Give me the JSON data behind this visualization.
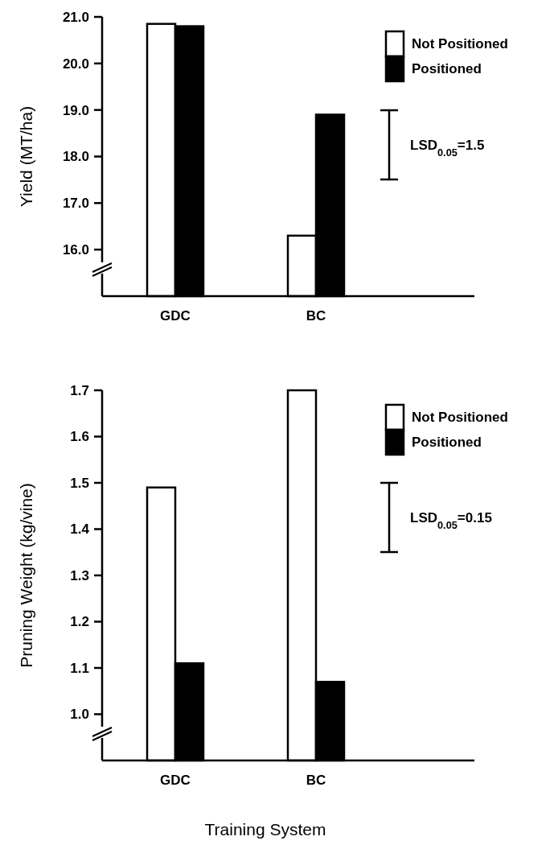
{
  "chart_data": [
    {
      "type": "bar",
      "ylabel": "Yield (MT/ha)",
      "categories": [
        "GDC",
        "BC"
      ],
      "series": [
        {
          "name": "Not Positioned",
          "color": "#ffffff",
          "values": [
            20.85,
            16.3
          ]
        },
        {
          "name": "Positioned",
          "color": "#000000",
          "values": [
            20.8,
            18.9
          ]
        }
      ],
      "ylim": [
        15.0,
        21.0
      ],
      "yticks": [
        {
          "value": 15.0,
          "label": null
        },
        {
          "value": 16.0,
          "label": "16.0"
        },
        {
          "value": 17.0,
          "label": "17.0"
        },
        {
          "value": 18.0,
          "label": "18.0"
        },
        {
          "value": 19.0,
          "label": "19.0"
        },
        {
          "value": 20.0,
          "label": "20.0"
        },
        {
          "value": 21.0,
          "label": "21.0"
        }
      ],
      "annotations": [
        "LSD$_{0.05}$=1.5"
      ],
      "legend": "top right"
    },
    {
      "type": "bar",
      "ylabel": "Pruning Weight (kg/vine)",
      "xlabel": "Training System",
      "categories": [
        "GDC",
        "BC"
      ],
      "series": [
        {
          "name": "Not Positioned",
          "color": "#ffffff",
          "values": [
            1.49,
            1.7
          ]
        },
        {
          "name": "Positioned",
          "color": "#000000",
          "values": [
            1.11,
            1.07
          ]
        }
      ],
      "ylim": [
        0.9,
        1.7
      ],
      "yticks": [
        {
          "value": 0.9,
          "label": null
        },
        {
          "value": 1.0,
          "label": "1.0"
        },
        1.1,
        1.2,
        1.3,
        1.4,
        1.5,
        1.6,
        1.7
      ],
      "annotations": [
        "LSD$_{0.05}$=0.15"
      ],
      "legend": "top right"
    }
  ]
}
